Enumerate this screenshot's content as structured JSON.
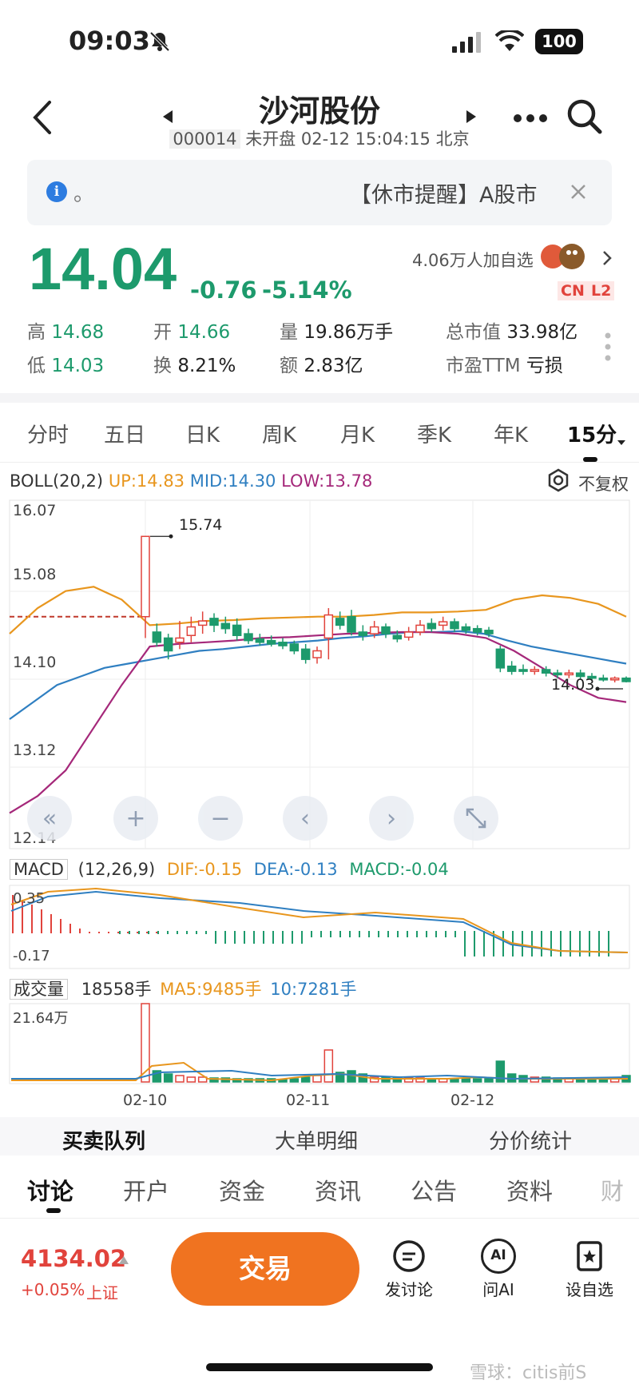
{
  "status_bar": {
    "time": "09:03",
    "battery": "100"
  },
  "header": {
    "title": "沙河股份",
    "code": "000014",
    "status": "未开盘 02-12 15:04:15 北京"
  },
  "notice": {
    "prefix": "。",
    "text": "【休市提醒】A股市"
  },
  "quote": {
    "price": "14.04",
    "change": "-0.76",
    "change_pct": "-5.14%",
    "watchers": "4.06万人加自选",
    "badge_cn": "CN",
    "badge_l2": "L2",
    "stats": [
      {
        "label": "高",
        "value": "14.68",
        "color": "green"
      },
      {
        "label": "开",
        "value": "14.66",
        "color": "green"
      },
      {
        "label": "量",
        "value": "19.86万手",
        "color": "dark"
      },
      {
        "label": "总市值",
        "value": "33.98亿",
        "color": "dark"
      },
      {
        "label": "低",
        "value": "14.03",
        "color": "green"
      },
      {
        "label": "换",
        "value": "8.21%",
        "color": "dark"
      },
      {
        "label": "额",
        "value": "2.83亿",
        "color": "dark"
      },
      {
        "label": "市盈TTM",
        "value": "亏损",
        "color": "dark"
      }
    ]
  },
  "period_tabs": [
    "分时",
    "五日",
    "日K",
    "周K",
    "月K",
    "季K",
    "年K",
    "15分"
  ],
  "active_period": "15分",
  "boll": {
    "title": "BOLL(20,2)",
    "up": "UP:14.83",
    "mid": "MID:14.30",
    "low": "LOW:13.78",
    "adjust": "不复权"
  },
  "chart_data": {
    "type": "candlestick",
    "y_ticks": [
      "16.07",
      "15.08",
      "14.10",
      "13.12",
      "12.14"
    ],
    "ylim": [
      12.14,
      16.07
    ],
    "high_label": "15.74",
    "last_label": "14.03",
    "x_ticks": [
      "02-10",
      "02-11",
      "02-12"
    ],
    "candles": [
      {
        "o": 14.8,
        "c": 15.74,
        "h": 15.74,
        "l": 14.55
      },
      {
        "o": 14.62,
        "c": 14.5,
        "h": 14.72,
        "l": 14.45
      },
      {
        "o": 14.55,
        "c": 14.4,
        "h": 14.6,
        "l": 14.3
      },
      {
        "o": 14.5,
        "c": 14.55,
        "h": 14.75,
        "l": 14.42
      },
      {
        "o": 14.58,
        "c": 14.68,
        "h": 14.8,
        "l": 14.5
      },
      {
        "o": 14.7,
        "c": 14.75,
        "h": 14.86,
        "l": 14.6
      },
      {
        "o": 14.78,
        "c": 14.7,
        "h": 14.84,
        "l": 14.62
      },
      {
        "o": 14.72,
        "c": 14.66,
        "h": 14.8,
        "l": 14.6
      },
      {
        "o": 14.7,
        "c": 14.58,
        "h": 14.78,
        "l": 14.52
      },
      {
        "o": 14.6,
        "c": 14.52,
        "h": 14.66,
        "l": 14.48
      },
      {
        "o": 14.54,
        "c": 14.5,
        "h": 14.6,
        "l": 14.46
      },
      {
        "o": 14.52,
        "c": 14.48,
        "h": 14.58,
        "l": 14.45
      },
      {
        "o": 14.5,
        "c": 14.46,
        "h": 14.55,
        "l": 14.42
      },
      {
        "o": 14.48,
        "c": 14.4,
        "h": 14.52,
        "l": 14.36
      },
      {
        "o": 14.42,
        "c": 14.3,
        "h": 14.48,
        "l": 14.25
      },
      {
        "o": 14.32,
        "c": 14.4,
        "h": 14.45,
        "l": 14.25
      },
      {
        "o": 14.55,
        "c": 14.82,
        "h": 14.9,
        "l": 14.3
      },
      {
        "o": 14.78,
        "c": 14.7,
        "h": 14.86,
        "l": 14.65
      },
      {
        "o": 14.8,
        "c": 14.62,
        "h": 14.88,
        "l": 14.58
      },
      {
        "o": 14.62,
        "c": 14.58,
        "h": 14.7,
        "l": 14.52
      },
      {
        "o": 14.6,
        "c": 14.68,
        "h": 14.75,
        "l": 14.55
      },
      {
        "o": 14.68,
        "c": 14.6,
        "h": 14.72,
        "l": 14.55
      },
      {
        "o": 14.58,
        "c": 14.54,
        "h": 14.64,
        "l": 14.5
      },
      {
        "o": 14.56,
        "c": 14.62,
        "h": 14.68,
        "l": 14.52
      },
      {
        "o": 14.62,
        "c": 14.7,
        "h": 14.76,
        "l": 14.58
      },
      {
        "o": 14.72,
        "c": 14.66,
        "h": 14.78,
        "l": 14.62
      },
      {
        "o": 14.7,
        "c": 14.74,
        "h": 14.8,
        "l": 14.64
      },
      {
        "o": 14.74,
        "c": 14.66,
        "h": 14.78,
        "l": 14.62
      },
      {
        "o": 14.68,
        "c": 14.64,
        "h": 14.72,
        "l": 14.6
      },
      {
        "o": 14.66,
        "c": 14.62,
        "h": 14.7,
        "l": 14.58
      },
      {
        "o": 14.64,
        "c": 14.6,
        "h": 14.68,
        "l": 14.56
      },
      {
        "o": 14.42,
        "c": 14.2,
        "h": 14.46,
        "l": 14.15
      },
      {
        "o": 14.22,
        "c": 14.16,
        "h": 14.28,
        "l": 14.12
      },
      {
        "o": 14.18,
        "c": 14.16,
        "h": 14.24,
        "l": 14.12
      },
      {
        "o": 14.16,
        "c": 14.18,
        "h": 14.22,
        "l": 14.12
      },
      {
        "o": 14.18,
        "c": 14.14,
        "h": 14.22,
        "l": 14.1
      },
      {
        "o": 14.14,
        "c": 14.12,
        "h": 14.18,
        "l": 14.08
      },
      {
        "o": 14.12,
        "c": 14.14,
        "h": 14.18,
        "l": 14.08
      },
      {
        "o": 14.14,
        "c": 14.1,
        "h": 14.18,
        "l": 14.06
      },
      {
        "o": 14.1,
        "c": 14.08,
        "h": 14.14,
        "l": 14.05
      },
      {
        "o": 14.08,
        "c": 14.06,
        "h": 14.12,
        "l": 14.04
      },
      {
        "o": 14.06,
        "c": 14.08,
        "h": 14.1,
        "l": 14.03
      },
      {
        "o": 14.08,
        "c": 14.04,
        "h": 14.1,
        "l": 14.03
      }
    ],
    "mid_line": [
      13.6,
      13.8,
      14.0,
      14.1,
      14.2,
      14.25,
      14.3,
      14.35,
      14.4,
      14.42,
      14.45,
      14.48,
      14.5,
      14.52,
      14.55,
      14.57,
      14.6,
      14.62,
      14.62,
      14.63,
      14.6,
      14.52,
      14.45,
      14.4,
      14.35,
      14.3,
      14.25
    ],
    "up_line": [
      14.6,
      14.9,
      15.1,
      15.15,
      15.0,
      14.7,
      14.72,
      14.75,
      14.76,
      14.78,
      14.79,
      14.8,
      14.8,
      14.82,
      14.85,
      14.85,
      14.86,
      14.88,
      15.0,
      15.05,
      15.02,
      14.95,
      14.8
    ],
    "low_line": [
      12.5,
      12.7,
      13.0,
      13.5,
      14.0,
      14.45,
      14.48,
      14.5,
      14.52,
      14.55,
      14.56,
      14.58,
      14.6,
      14.61,
      14.62,
      14.62,
      14.6,
      14.55,
      14.4,
      14.2,
      14.0,
      13.85,
      13.8
    ]
  },
  "macd": {
    "title": "MACD",
    "params": "(12,26,9)",
    "dif": "DIF:-0.15",
    "dea": "DEA:-0.13",
    "value": "MACD:-0.04",
    "y_top": "0.35",
    "y_bottom": "-0.17"
  },
  "volume": {
    "title": "成交量",
    "current": "18558手",
    "ma5": "MA5:9485手",
    "ma10": "10:7281手",
    "y_top": "21.64万"
  },
  "sub_tabs": [
    "买卖队列",
    "大单明细",
    "分价统计"
  ],
  "bottom_tabs": [
    "讨论",
    "开户",
    "资金",
    "资讯",
    "公告",
    "资料",
    "财"
  ],
  "footer": {
    "index_value": "4134.02",
    "index_change": "+0.05%",
    "index_name": "上证",
    "trade": "交易",
    "post": "发讨论",
    "ask_ai": "问AI",
    "watch": "设自选",
    "watermark": "雪球：citis前S"
  },
  "colors": {
    "green": "#1d9a6c",
    "red": "#e1433c",
    "orange": "#f07320",
    "boll_up": "#e8961e",
    "boll_mid": "#2f7fc1",
    "boll_low": "#a5287a"
  }
}
